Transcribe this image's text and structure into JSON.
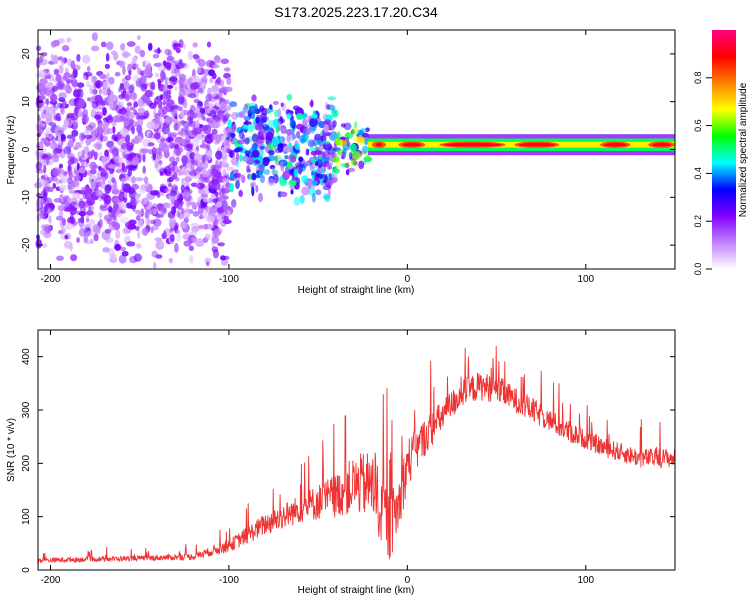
{
  "title": "S173.2025.223.17.20.C34",
  "chart_data": [
    {
      "type": "heatmap",
      "xlabel": "Height of straight line (km)",
      "ylabel": "Frequency (Hz)",
      "xlim": [
        -207,
        150
      ],
      "ylim": [
        -25,
        25
      ],
      "xticks": [
        -200,
        -100,
        0,
        100
      ],
      "yticks": [
        -20,
        -10,
        0,
        10,
        20
      ],
      "colorbar": {
        "label": "Normalized spectral amplitude",
        "range": [
          0,
          1
        ],
        "ticks": [
          0.0,
          0.2,
          0.4,
          0.6,
          0.8
        ],
        "tick_labels": [
          "0.0",
          "0.2",
          "0.4",
          "0.6",
          "0.8"
        ],
        "stops": [
          "#ffffff",
          "#c080ff",
          "#8000ff",
          "#0000ff",
          "#00ffff",
          "#00ff00",
          "#ffff00",
          "#ff8000",
          "#ff0000",
          "#ff0080"
        ]
      },
      "ridge": {
        "frequency_hz": 1,
        "from_km": -22,
        "to_km": 150,
        "peak_segments_km": [
          [
            -20,
            -12
          ],
          [
            -5,
            10
          ],
          [
            18,
            55
          ],
          [
            60,
            85
          ],
          [
            108,
            125
          ],
          [
            135,
            150
          ]
        ]
      },
      "regions": [
        {
          "from_km": -207,
          "to_km": -100,
          "freq_half_width_hz": 25,
          "amplitude": 0.15
        },
        {
          "from_km": -100,
          "to_km": -40,
          "freq_half_width_hz": 12,
          "amplitude": 0.3
        },
        {
          "from_km": -40,
          "to_km": -22,
          "freq_half_width_hz": 6,
          "amplitude": 0.45
        }
      ]
    },
    {
      "type": "line",
      "xlabel": "Height of straight line (km)",
      "ylabel": "SNR (10 * v/v)",
      "xlim": [
        -207,
        150
      ],
      "ylim": [
        0,
        450
      ],
      "xticks": [
        -200,
        -100,
        0,
        100
      ],
      "yticks": [
        0,
        100,
        200,
        300,
        400
      ],
      "color": "#ee3333",
      "series": [
        {
          "name": "SNR",
          "x": [
            -207,
            -180,
            -150,
            -120,
            -100,
            -80,
            -60,
            -40,
            -30,
            -20,
            -15,
            -10,
            -5,
            0,
            10,
            20,
            30,
            40,
            50,
            60,
            70,
            80,
            90,
            100,
            110,
            120,
            130,
            140,
            150
          ],
          "y": [
            18,
            20,
            22,
            25,
            45,
            85,
            115,
            140,
            160,
            160,
            120,
            80,
            120,
            200,
            250,
            290,
            330,
            345,
            340,
            320,
            300,
            280,
            260,
            245,
            230,
            220,
            210,
            210,
            210
          ],
          "spike_amplitude": [
            8,
            8,
            8,
            10,
            20,
            35,
            45,
            70,
            90,
            110,
            120,
            110,
            90,
            80,
            60,
            50,
            45,
            45,
            45,
            40,
            40,
            35,
            35,
            30,
            30,
            30,
            30,
            30,
            30
          ]
        }
      ]
    }
  ]
}
